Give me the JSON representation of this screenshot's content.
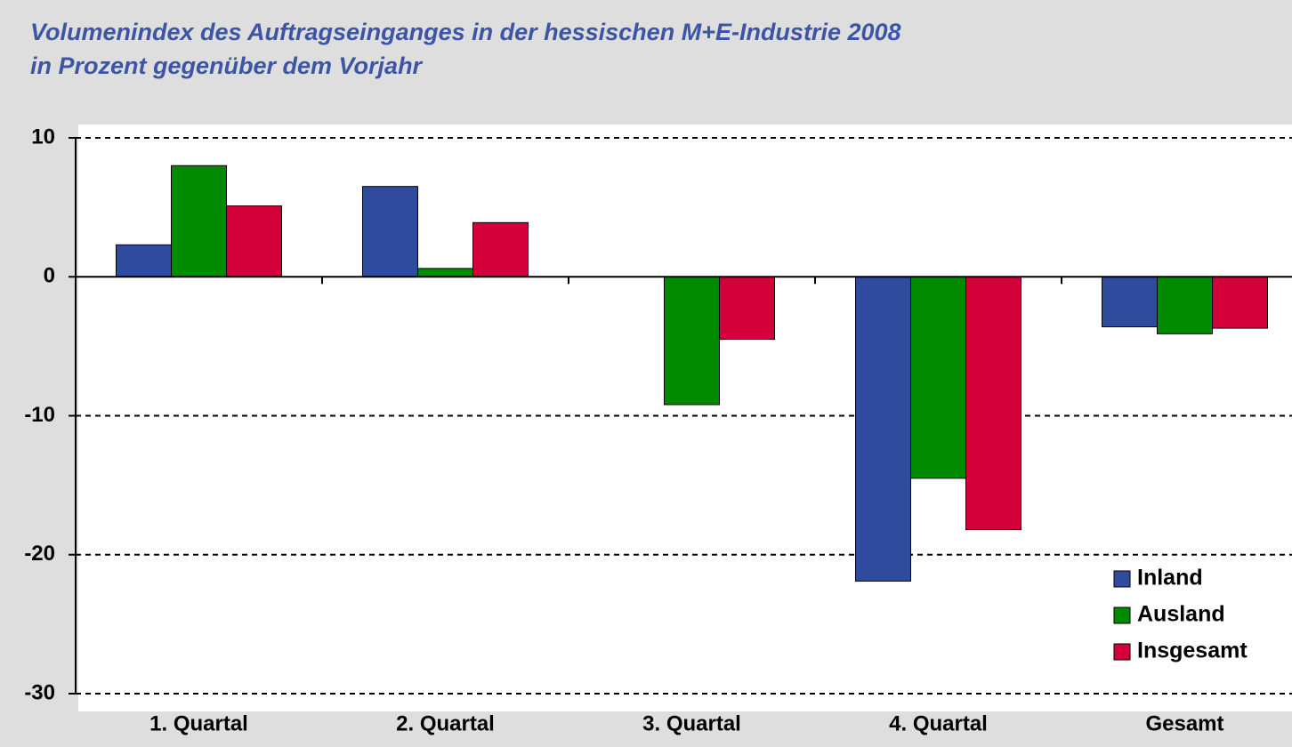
{
  "chart_data": {
    "type": "bar",
    "title": "Volumenindex des Auftragseinganges in der hessischen M+E-Industrie 2008",
    "subtitle": "in Prozent gegenüber dem Vorjahr",
    "categories": [
      "1. Quartal",
      "2. Quartal",
      "3. Quartal",
      "4. Quartal",
      "Gesamt"
    ],
    "series": [
      {
        "name": "Inland",
        "color": "#2e4b9e",
        "values": [
          2.3,
          6.5,
          0,
          -21.9,
          -3.6
        ]
      },
      {
        "name": "Ausland",
        "color": "#008a00",
        "values": [
          8.0,
          0.6,
          -9.2,
          -14.5,
          -4.1
        ]
      },
      {
        "name": "Insgesamt",
        "color": "#d4003a",
        "values": [
          5.1,
          3.9,
          -4.5,
          -18.2,
          -3.7
        ]
      }
    ],
    "ylim": [
      -30,
      10
    ],
    "yticks": [
      -30,
      -20,
      -10,
      0,
      10
    ],
    "grid": true,
    "legend": "lower right"
  }
}
